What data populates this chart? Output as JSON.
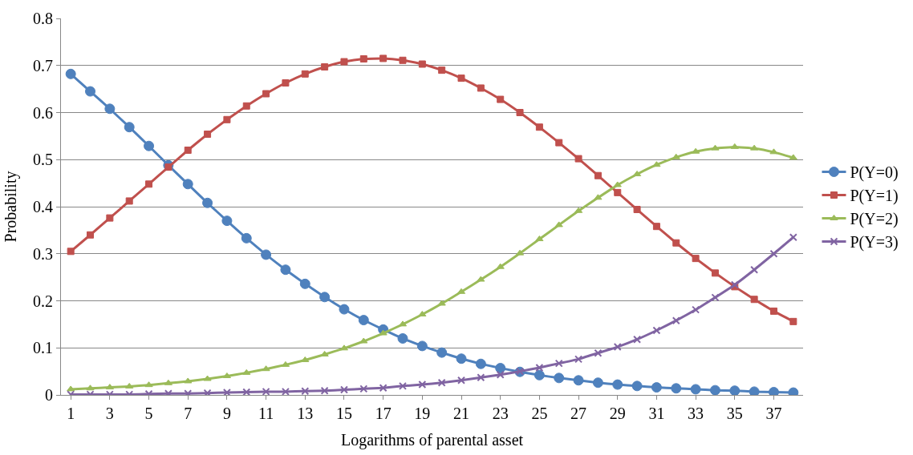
{
  "chart_data": {
    "type": "line",
    "xlabel": "Logarithms of parental asset",
    "ylabel": "Probability",
    "x": [
      1,
      2,
      3,
      4,
      5,
      6,
      7,
      8,
      9,
      10,
      11,
      12,
      13,
      14,
      15,
      16,
      17,
      18,
      19,
      20,
      21,
      22,
      23,
      24,
      25,
      26,
      27,
      28,
      29,
      30,
      31,
      32,
      33,
      34,
      35,
      36,
      37,
      38
    ],
    "xlim": [
      0.5,
      38.5
    ],
    "xticks": [
      1,
      3,
      5,
      7,
      9,
      11,
      13,
      15,
      17,
      19,
      21,
      23,
      25,
      27,
      29,
      31,
      33,
      35,
      37
    ],
    "ylim": [
      0,
      0.8
    ],
    "yticks": [
      0,
      0.1,
      0.2,
      0.3,
      0.4,
      0.5,
      0.6,
      0.7,
      0.8
    ],
    "grid": "y",
    "legend": "right",
    "line_style": "solid",
    "series": [
      {
        "name": "P(Y=0)",
        "color": "#4f81bd",
        "marker": "circle",
        "values": [
          0.682,
          0.645,
          0.608,
          0.569,
          0.529,
          0.488,
          0.448,
          0.408,
          0.37,
          0.333,
          0.298,
          0.266,
          0.236,
          0.208,
          0.182,
          0.159,
          0.139,
          0.12,
          0.104,
          0.09,
          0.077,
          0.066,
          0.057,
          0.049,
          0.042,
          0.036,
          0.031,
          0.026,
          0.022,
          0.019,
          0.016,
          0.014,
          0.012,
          0.01,
          0.009,
          0.007,
          0.006,
          0.005
        ]
      },
      {
        "name": "P(Y=1)",
        "color": "#c0504d",
        "marker": "square",
        "values": [
          0.305,
          0.34,
          0.376,
          0.412,
          0.448,
          0.484,
          0.52,
          0.554,
          0.585,
          0.614,
          0.64,
          0.663,
          0.682,
          0.697,
          0.708,
          0.714,
          0.715,
          0.711,
          0.703,
          0.69,
          0.673,
          0.652,
          0.628,
          0.6,
          0.569,
          0.536,
          0.502,
          0.466,
          0.43,
          0.394,
          0.358,
          0.323,
          0.29,
          0.259,
          0.23,
          0.203,
          0.178,
          0.156
        ]
      },
      {
        "name": "P(Y=2)",
        "color": "#9bbb59",
        "marker": "triangle",
        "values": [
          0.012,
          0.014,
          0.016,
          0.018,
          0.021,
          0.025,
          0.029,
          0.034,
          0.04,
          0.047,
          0.055,
          0.064,
          0.074,
          0.086,
          0.099,
          0.114,
          0.131,
          0.15,
          0.171,
          0.194,
          0.219,
          0.245,
          0.272,
          0.301,
          0.331,
          0.361,
          0.391,
          0.419,
          0.446,
          0.469,
          0.489,
          0.505,
          0.517,
          0.524,
          0.527,
          0.524,
          0.516,
          0.504
        ]
      },
      {
        "name": "P(Y=3)",
        "color": "#8064a2",
        "marker": "cross",
        "values": [
          0.001,
          0.001,
          0.001,
          0.001,
          0.002,
          0.003,
          0.003,
          0.004,
          0.005,
          0.006,
          0.007,
          0.007,
          0.008,
          0.009,
          0.011,
          0.013,
          0.015,
          0.019,
          0.022,
          0.026,
          0.031,
          0.037,
          0.043,
          0.05,
          0.058,
          0.067,
          0.076,
          0.089,
          0.102,
          0.118,
          0.137,
          0.158,
          0.181,
          0.207,
          0.234,
          0.266,
          0.3,
          0.335
        ]
      }
    ]
  }
}
